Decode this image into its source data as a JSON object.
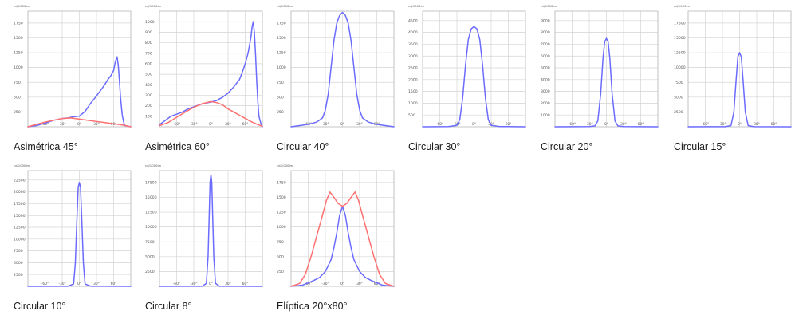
{
  "chart_data": [
    {
      "type": "line",
      "caption": "Asimétrica 45°",
      "unit_label": "cd/1000lm",
      "y_ticks": [
        "250",
        "500",
        "750",
        "1000",
        "1250",
        "1500",
        "1750"
      ],
      "x_ticks": [
        "-60°",
        "-30°",
        "0°",
        "30°",
        "60°"
      ],
      "xlim": [
        -90,
        90
      ],
      "ylim": [
        0,
        1950
      ],
      "series": [
        {
          "color": "#6b6bff",
          "x": [
            -90,
            -75,
            -60,
            -45,
            -30,
            -20,
            -10,
            0,
            10,
            20,
            30,
            40,
            45,
            50,
            55,
            60,
            63,
            66,
            68,
            70,
            72,
            75,
            78,
            80,
            90
          ],
          "y": [
            0,
            20,
            60,
            110,
            140,
            150,
            170,
            180,
            260,
            400,
            520,
            650,
            720,
            800,
            860,
            950,
            1100,
            1180,
            1050,
            800,
            500,
            200,
            60,
            20,
            0
          ]
        },
        {
          "color": "#ff7070",
          "x": [
            -90,
            -75,
            -60,
            -45,
            -30,
            -15,
            0,
            15,
            30,
            45,
            60,
            75,
            90
          ],
          "y": [
            0,
            40,
            80,
            110,
            140,
            150,
            130,
            110,
            90,
            70,
            50,
            30,
            0
          ]
        }
      ]
    },
    {
      "type": "line",
      "caption": "Asimétrica 60°",
      "unit_label": "cd/1000lm",
      "y_ticks": [
        "100",
        "200",
        "300",
        "400",
        "500",
        "600",
        "700",
        "800",
        "900",
        "1000"
      ],
      "x_ticks": [
        "-60°",
        "-30°",
        "0°",
        "30°",
        "60°"
      ],
      "xlim": [
        -90,
        90
      ],
      "ylim": [
        0,
        1100
      ],
      "series": [
        {
          "color": "#6b6bff",
          "x": [
            -90,
            -80,
            -70,
            -60,
            -50,
            -40,
            -30,
            -20,
            -10,
            0,
            10,
            20,
            30,
            40,
            50,
            55,
            60,
            65,
            70,
            72,
            74,
            76,
            78,
            80,
            82,
            84,
            88,
            90
          ],
          "y": [
            20,
            60,
            100,
            120,
            140,
            170,
            190,
            210,
            225,
            235,
            250,
            280,
            320,
            380,
            450,
            520,
            600,
            700,
            850,
            950,
            1000,
            900,
            700,
            450,
            250,
            100,
            20,
            0
          ]
        },
        {
          "color": "#ff7070",
          "x": [
            -90,
            -75,
            -60,
            -45,
            -30,
            -15,
            0,
            10,
            20,
            30,
            40,
            50,
            60,
            70,
            80,
            90
          ],
          "y": [
            10,
            40,
            90,
            140,
            185,
            220,
            240,
            230,
            210,
            170,
            140,
            110,
            80,
            50,
            25,
            5
          ]
        }
      ]
    },
    {
      "type": "line",
      "caption": "Circular 40°",
      "unit_label": "cd/1000lm",
      "y_ticks": [
        "250",
        "500",
        "750",
        "1000",
        "1250",
        "1500",
        "1750"
      ],
      "x_ticks": [
        "-60°",
        "-30°",
        "0°",
        "30°",
        "60°"
      ],
      "xlim": [
        -90,
        90
      ],
      "ylim": [
        0,
        1950
      ],
      "series": [
        {
          "color": "#6b6bff",
          "x": [
            -90,
            -75,
            -60,
            -45,
            -35,
            -30,
            -25,
            -20,
            -15,
            -10,
            -5,
            0,
            5,
            10,
            15,
            20,
            25,
            30,
            35,
            45,
            60,
            75,
            90
          ],
          "y": [
            0,
            20,
            40,
            80,
            150,
            280,
            550,
            1000,
            1450,
            1750,
            1880,
            1930,
            1880,
            1750,
            1450,
            1000,
            550,
            280,
            150,
            80,
            40,
            20,
            0
          ]
        }
      ]
    },
    {
      "type": "line",
      "caption": "Circular 30°",
      "unit_label": "cd/1000lm",
      "y_ticks": [
        "500",
        "1000",
        "1500",
        "2000",
        "2500",
        "3000",
        "3500",
        "4000",
        "4500"
      ],
      "x_ticks": [
        "-60°",
        "-30°",
        "0°",
        "30°",
        "60°"
      ],
      "xlim": [
        -90,
        90
      ],
      "ylim": [
        0,
        4900
      ],
      "series": [
        {
          "color": "#6b6bff",
          "x": [
            -90,
            -45,
            -30,
            -25,
            -20,
            -15,
            -10,
            -5,
            0,
            5,
            10,
            15,
            20,
            25,
            30,
            45,
            90
          ],
          "y": [
            0,
            10,
            60,
            300,
            1200,
            2600,
            3700,
            4150,
            4250,
            4150,
            3700,
            2600,
            1200,
            300,
            60,
            10,
            0
          ]
        }
      ]
    },
    {
      "type": "line",
      "caption": "Circular 20°",
      "unit_label": "cd/1000lm",
      "y_ticks": [
        "1000",
        "2000",
        "3000",
        "4000",
        "5000",
        "6000",
        "7000",
        "8000",
        "9000"
      ],
      "x_ticks": [
        "-60°",
        "-30°",
        "0°",
        "30°",
        "60°"
      ],
      "xlim": [
        -90,
        90
      ],
      "ylim": [
        0,
        9800
      ],
      "series": [
        {
          "color": "#6b6bff",
          "x": [
            -90,
            -30,
            -20,
            -15,
            -10,
            -6,
            -3,
            0,
            3,
            6,
            10,
            15,
            20,
            30,
            90
          ],
          "y": [
            0,
            20,
            80,
            500,
            2800,
            5800,
            7200,
            7500,
            7200,
            5800,
            2800,
            500,
            80,
            20,
            0
          ]
        }
      ]
    },
    {
      "type": "line",
      "caption": "Circular 15°",
      "unit_label": "cd/1000lm",
      "y_ticks": [
        "2500",
        "5000",
        "7500",
        "10000",
        "12500",
        "15000",
        "17500"
      ],
      "x_ticks": [
        "-60°",
        "-30°",
        "0°",
        "30°",
        "60°"
      ],
      "xlim": [
        -90,
        90
      ],
      "ylim": [
        0,
        19500
      ],
      "series": [
        {
          "color": "#6b6bff",
          "x": [
            -90,
            -25,
            -15,
            -10,
            -6,
            -3,
            0,
            3,
            6,
            10,
            15,
            25,
            90
          ],
          "y": [
            0,
            20,
            200,
            2500,
            8000,
            11800,
            12500,
            11800,
            8000,
            2500,
            200,
            20,
            0
          ]
        }
      ]
    },
    {
      "type": "line",
      "caption": "Circular 10°",
      "unit_label": "cd/1000lm",
      "y_ticks": [
        "2500",
        "5000",
        "7500",
        "10000",
        "12500",
        "15000",
        "17500",
        "20000",
        "22500"
      ],
      "x_ticks": [
        "-60°",
        "-30°",
        "0°",
        "30°",
        "60°"
      ],
      "xlim": [
        -90,
        90
      ],
      "ylim": [
        0,
        24500
      ],
      "series": [
        {
          "color": "#6b6bff",
          "x": [
            -90,
            -20,
            -10,
            -7,
            -4,
            -2,
            0,
            2,
            4,
            7,
            10,
            20,
            90
          ],
          "y": [
            0,
            20,
            500,
            5000,
            15000,
            21000,
            22000,
            21000,
            15000,
            5000,
            500,
            20,
            0
          ]
        }
      ]
    },
    {
      "type": "line",
      "caption": "Circular 8°",
      "unit_label": "cd/1000lm",
      "y_ticks": [
        "2500",
        "5000",
        "7500",
        "10000",
        "12500",
        "15000",
        "17500"
      ],
      "x_ticks": [
        "-60°",
        "-30°",
        "0°",
        "30°",
        "60°"
      ],
      "xlim": [
        -90,
        90
      ],
      "ylim": [
        0,
        19500
      ],
      "series": [
        {
          "color": "#6b6bff",
          "x": [
            -90,
            -15,
            -8,
            -5,
            -3,
            -1.5,
            0,
            1.5,
            3,
            5,
            8,
            15,
            90
          ],
          "y": [
            0,
            20,
            500,
            5000,
            12000,
            17500,
            18800,
            17500,
            12000,
            5000,
            500,
            20,
            0
          ]
        }
      ]
    },
    {
      "type": "line",
      "caption": "Elíptica 20°x80°",
      "unit_label": "cd/1000lm",
      "y_ticks": [
        "250",
        "500",
        "750",
        "1000",
        "1250",
        "1500",
        "1750"
      ],
      "x_ticks": [
        "-60°",
        "-30°",
        "0°",
        "30°",
        "60°"
      ],
      "xlim": [
        -90,
        90
      ],
      "ylim": [
        0,
        1950
      ],
      "series": [
        {
          "color": "#6b6bff",
          "x": [
            -90,
            -70,
            -60,
            -50,
            -40,
            -30,
            -20,
            -15,
            -10,
            -5,
            0,
            5,
            10,
            15,
            20,
            30,
            40,
            50,
            60,
            70,
            90
          ],
          "y": [
            0,
            20,
            60,
            100,
            150,
            250,
            450,
            650,
            900,
            1200,
            1350,
            1200,
            900,
            650,
            450,
            250,
            150,
            100,
            60,
            20,
            0
          ]
        },
        {
          "color": "#ff7070",
          "x": [
            -90,
            -75,
            -65,
            -55,
            -45,
            -35,
            -28,
            -22,
            -15,
            -8,
            0,
            8,
            15,
            22,
            28,
            35,
            45,
            55,
            65,
            75,
            90
          ],
          "y": [
            0,
            50,
            200,
            500,
            850,
            1200,
            1450,
            1590,
            1500,
            1400,
            1350,
            1400,
            1500,
            1590,
            1450,
            1200,
            850,
            500,
            200,
            50,
            0
          ]
        }
      ]
    }
  ]
}
